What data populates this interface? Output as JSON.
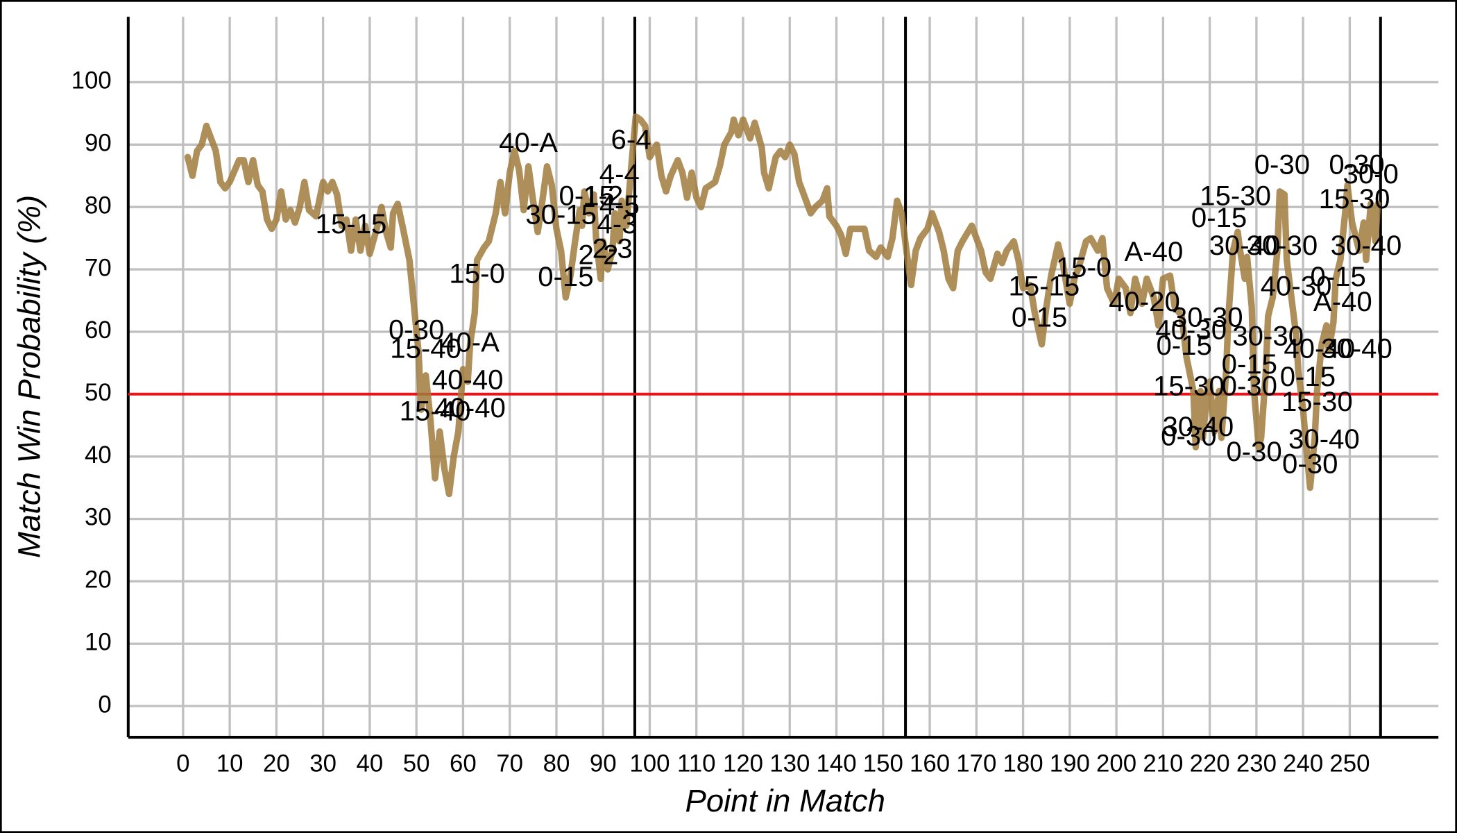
{
  "chart_data": {
    "type": "line",
    "xlabel": "Point in Match",
    "ylabel": "Match Win Probability (%)",
    "color": "#a07a3c",
    "grid": true,
    "xlim": [
      -11.75,
      269
    ],
    "ylim": [
      -5,
      110.5
    ],
    "xticks": [
      0,
      10,
      20,
      30,
      40,
      50,
      60,
      70,
      80,
      90,
      100,
      110,
      120,
      130,
      140,
      150,
      160,
      170,
      180,
      190,
      200,
      210,
      220,
      230,
      240,
      250
    ],
    "yticks": [
      0,
      10,
      20,
      30,
      40,
      50,
      60,
      70,
      80,
      90,
      100
    ],
    "reference_line": 50,
    "reference_color": "#e8141a",
    "set_lines": [
      96.8,
      154.8,
      256.6
    ],
    "x": [
      1,
      2,
      3,
      4,
      5,
      6,
      7,
      8,
      9,
      10,
      12,
      13,
      14,
      15,
      16,
      17,
      18,
      19,
      20,
      21,
      22,
      23,
      24,
      25,
      26,
      27,
      28.5,
      30,
      31,
      32,
      33,
      34,
      35,
      36,
      37,
      38,
      39,
      40,
      41.5,
      42.5,
      43.5,
      44.5,
      45,
      46,
      47,
      48.5,
      49.5,
      50.5,
      51,
      52,
      53,
      54,
      55,
      56,
      57,
      58,
      59,
      60,
      61,
      61.5,
      62.5,
      63,
      64.5,
      65.5,
      67,
      68,
      69,
      70,
      71,
      72,
      73,
      74,
      75,
      76,
      77,
      78,
      79,
      80,
      81,
      82,
      83,
      84,
      85,
      85.5,
      86,
      87,
      88,
      88.5,
      89.5,
      90,
      91,
      92,
      92.5,
      93.5,
      94,
      95,
      96,
      97,
      98,
      99,
      100,
      101.5,
      102.5,
      103.5,
      104.5,
      106,
      107,
      108,
      109,
      110,
      111,
      112,
      114,
      115,
      116,
      117.5,
      118,
      119,
      120,
      121.5,
      122.5,
      124,
      124.5,
      125.5,
      127,
      128,
      129,
      130,
      131,
      132,
      133,
      134.5,
      135.5,
      137,
      138,
      138.5,
      140,
      141,
      142,
      143,
      144.5,
      146,
      147,
      148.5,
      149.5,
      151,
      152,
      153,
      154,
      155,
      156,
      157,
      158,
      159.5,
      160.5,
      162,
      163,
      164,
      165,
      166,
      167,
      169,
      170,
      171,
      172,
      173,
      174.5,
      175.5,
      176.5,
      178,
      179,
      180,
      181.5,
      182.5,
      184,
      185,
      186,
      187.5,
      188.5,
      190,
      191,
      192,
      193.5,
      194.5,
      196,
      197,
      198,
      199.5,
      200.5,
      202,
      203,
      204,
      205.5,
      206.5,
      208,
      209,
      210,
      211.5,
      212.5,
      214,
      215,
      216.5,
      217,
      218,
      218.5,
      219.5,
      220,
      221,
      222,
      222.5,
      223.5,
      224,
      225,
      226,
      226.5,
      227.5,
      228,
      229,
      229.5,
      230.5,
      231,
      232,
      232.5,
      233.5,
      234.5,
      235,
      236,
      236.5,
      237.5,
      238.5,
      239,
      240,
      240.5,
      241.5,
      242.5,
      243,
      244,
      245,
      245.5,
      246.5,
      247,
      248,
      249,
      249.5,
      250.5,
      251,
      252,
      253,
      253.5,
      254.5,
      255.5,
      256
    ],
    "values": [
      88,
      85,
      89,
      90,
      93,
      91,
      89,
      84,
      83,
      84,
      87.5,
      87.5,
      84,
      87.5,
      83.5,
      82.5,
      78,
      76.5,
      78,
      82.5,
      78,
      79.5,
      77.5,
      80,
      84,
      79.5,
      78.5,
      84,
      82.5,
      84,
      82,
      77,
      78,
      73,
      78,
      73,
      77,
      72.5,
      76.5,
      80,
      76,
      73.5,
      79,
      80.5,
      77,
      71.5,
      64,
      56.5,
      47.5,
      53,
      46,
      36.5,
      44,
      38,
      34,
      40,
      44,
      54,
      52,
      58,
      63,
      71.5,
      73.5,
      74.5,
      79,
      84,
      79,
      85.5,
      89,
      86,
      79.5,
      86.5,
      81,
      76,
      81,
      86.5,
      83.5,
      76.5,
      73,
      65.5,
      69,
      74.5,
      79.5,
      77,
      82.5,
      79,
      82,
      75,
      68.5,
      74.5,
      70,
      73,
      79,
      74.5,
      81,
      77,
      86,
      94.5,
      94,
      93,
      88,
      90,
      85,
      82.5,
      85,
      87.5,
      85.5,
      81.5,
      85.5,
      81.5,
      80,
      83,
      84,
      86.5,
      90,
      92,
      94,
      91.5,
      94,
      91,
      93.5,
      89.5,
      85.5,
      83,
      88,
      89,
      88,
      90,
      88.5,
      84,
      82,
      79,
      80,
      81,
      83,
      78.5,
      77,
      75.5,
      72.5,
      76.5,
      76.5,
      76.5,
      73,
      72,
      73.5,
      72,
      75,
      81,
      79,
      73,
      67.5,
      73,
      75,
      76.5,
      79,
      76,
      73,
      68.5,
      67,
      73,
      74.5,
      77,
      75,
      73,
      69.5,
      68.5,
      72.5,
      71,
      73,
      74.5,
      71.5,
      67,
      67.5,
      63,
      58,
      64,
      69,
      74,
      71,
      64.5,
      68.5,
      70.5,
      74.5,
      75,
      73,
      75,
      67,
      64.5,
      68.5,
      67,
      63,
      68.5,
      64.5,
      68.5,
      65.5,
      61,
      68.5,
      69,
      64,
      62.5,
      56,
      50.5,
      41.5,
      50.5,
      43,
      50.5,
      52,
      44,
      50.5,
      43,
      53.5,
      62.5,
      73,
      76,
      73,
      68.5,
      72,
      64,
      50.5,
      41.5,
      43,
      53.5,
      62.5,
      65.5,
      73,
      82.5,
      82,
      71.5,
      65.5,
      59.5,
      53.5,
      47.5,
      43,
      35,
      43,
      50.5,
      58,
      61,
      57,
      61.5,
      68.5,
      71.5,
      79,
      83.5,
      77.5,
      76,
      73,
      77.5,
      71.5,
      80.5,
      74.5,
      80.5
    ],
    "annotations": [
      {
        "text": "15-15",
        "x": 36,
        "y": 77
      },
      {
        "text": "0-30",
        "x": 50,
        "y": 60
      },
      {
        "text": "15-40",
        "x": 52,
        "y": 57
      },
      {
        "text": "40-A",
        "x": 61.5,
        "y": 58
      },
      {
        "text": "40-40",
        "x": 61,
        "y": 52
      },
      {
        "text": "15-40",
        "x": 54,
        "y": 47
      },
      {
        "text": "40-40",
        "x": 61.5,
        "y": 47.5
      },
      {
        "text": "15-0",
        "x": 63,
        "y": 69
      },
      {
        "text": "40-A",
        "x": 74,
        "y": 90
      },
      {
        "text": "30-15",
        "x": 81,
        "y": 78.5
      },
      {
        "text": "0-15",
        "x": 82,
        "y": 68.5
      },
      {
        "text": "0-15",
        "x": 86.5,
        "y": 81.5
      },
      {
        "text": "1-2",
        "x": 90,
        "y": 81.5
      },
      {
        "text": "4-5",
        "x": 93.5,
        "y": 80
      },
      {
        "text": "4-3",
        "x": 93,
        "y": 77
      },
      {
        "text": "2-2",
        "x": 89,
        "y": 72
      },
      {
        "text": "2-3",
        "x": 92,
        "y": 73
      },
      {
        "text": "4-4",
        "x": 93.5,
        "y": 85
      },
      {
        "text": "6-4",
        "x": 96,
        "y": 90.5
      },
      {
        "text": "15-15",
        "x": 184.5,
        "y": 67
      },
      {
        "text": "15-0",
        "x": 193,
        "y": 70
      },
      {
        "text": "0-15",
        "x": 183.5,
        "y": 62
      },
      {
        "text": "A-40",
        "x": 208,
        "y": 72.5
      },
      {
        "text": "40-20",
        "x": 206,
        "y": 64.5
      },
      {
        "text": "15-30",
        "x": 225.5,
        "y": 81.5
      },
      {
        "text": "0-15",
        "x": 222,
        "y": 78
      },
      {
        "text": "0-30",
        "x": 235.5,
        "y": 86.5
      },
      {
        "text": "0-30",
        "x": 251.5,
        "y": 86.5
      },
      {
        "text": "30-0",
        "x": 254.5,
        "y": 85
      },
      {
        "text": "15-30",
        "x": 251,
        "y": 81
      },
      {
        "text": "30-40",
        "x": 227.5,
        "y": 73.5
      },
      {
        "text": "30-30",
        "x": 235.5,
        "y": 73.5
      },
      {
        "text": "30-40",
        "x": 253.5,
        "y": 73.5
      },
      {
        "text": "40-30",
        "x": 238.5,
        "y": 67
      },
      {
        "text": "0-15",
        "x": 247.5,
        "y": 68.5
      },
      {
        "text": "A-40",
        "x": 248.5,
        "y": 64.5
      },
      {
        "text": "30-30",
        "x": 219.5,
        "y": 62
      },
      {
        "text": "40-30",
        "x": 216,
        "y": 60
      },
      {
        "text": "0-15",
        "x": 214.5,
        "y": 57.5
      },
      {
        "text": "30-30",
        "x": 232.5,
        "y": 59
      },
      {
        "text": "40-40",
        "x": 243.5,
        "y": 57
      },
      {
        "text": "30-40",
        "x": 251.5,
        "y": 57
      },
      {
        "text": "0-15",
        "x": 228.5,
        "y": 54.5
      },
      {
        "text": "15-30",
        "x": 215.5,
        "y": 51
      },
      {
        "text": "0-30",
        "x": 228.5,
        "y": 51
      },
      {
        "text": "0-15",
        "x": 241,
        "y": 52.5
      },
      {
        "text": "15-30",
        "x": 243,
        "y": 48.5
      },
      {
        "text": "30-40",
        "x": 217.5,
        "y": 44.5
      },
      {
        "text": "0-30",
        "x": 215.5,
        "y": 43
      },
      {
        "text": "30-40",
        "x": 244.5,
        "y": 42.5
      },
      {
        "text": "0-30",
        "x": 229.5,
        "y": 40.5
      },
      {
        "text": "0-30",
        "x": 241.5,
        "y": 38.5
      }
    ]
  }
}
